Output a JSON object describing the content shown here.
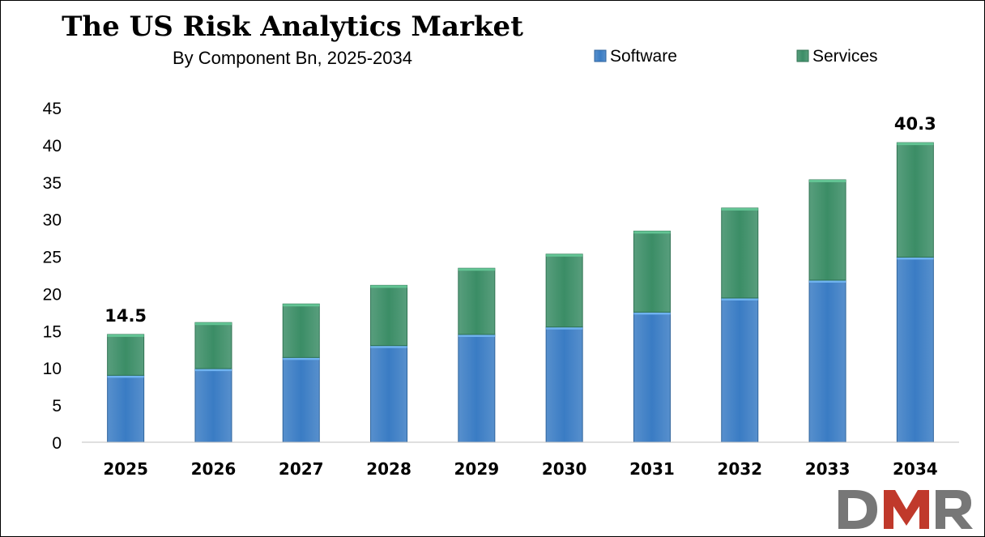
{
  "chart_data": {
    "type": "bar",
    "stacked": true,
    "title": "The US Risk Analytics Market",
    "subtitle": "By Component Bn, 2025-2034",
    "xlabel": "",
    "ylabel": "",
    "categories": [
      "2025",
      "2026",
      "2027",
      "2028",
      "2029",
      "2030",
      "2031",
      "2032",
      "2033",
      "2034"
    ],
    "series": [
      {
        "name": "Software",
        "color": "#3a7cc4",
        "values": [
          9.0,
          9.9,
          11.4,
          13.0,
          14.5,
          15.5,
          17.5,
          19.4,
          21.8,
          24.9
        ]
      },
      {
        "name": "Services",
        "color": "#3b8d66",
        "values": [
          5.5,
          6.2,
          7.2,
          8.1,
          8.9,
          9.8,
          10.9,
          12.1,
          13.5,
          15.4
        ]
      }
    ],
    "totals_labels": [
      {
        "category": "2025",
        "text": "14.5"
      },
      {
        "category": "2034",
        "text": "40.3"
      }
    ],
    "ylim": [
      0,
      45
    ],
    "yticks": [
      0,
      5,
      10,
      15,
      20,
      25,
      30,
      35,
      40,
      45
    ],
    "grid": false,
    "legend_position": "top-right"
  },
  "logo": {
    "text": "DMR",
    "colors": {
      "d": "#777777",
      "m": "#c0392b",
      "r": "#777777"
    }
  }
}
